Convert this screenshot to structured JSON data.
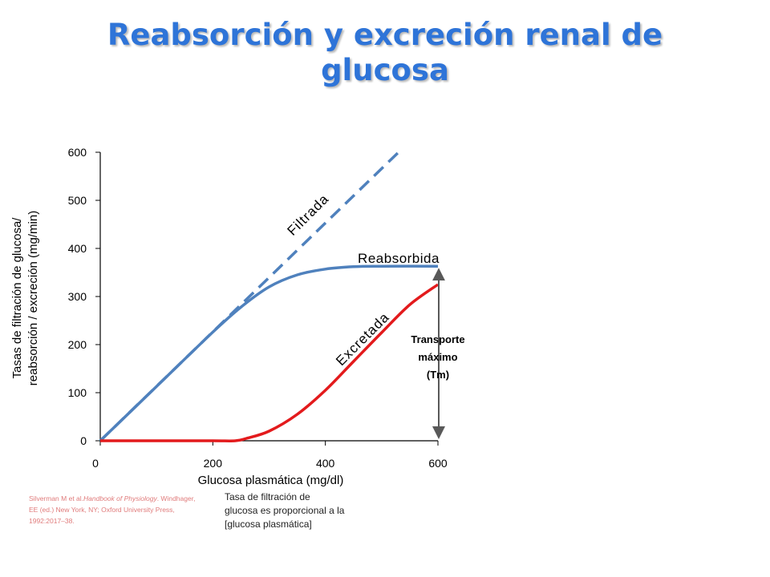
{
  "title": {
    "line1": "Reabsorción y excreción renal de",
    "line2": "glucosa"
  },
  "citation": {
    "before": "Silverman M et al.",
    "book": "Handbook of Physiology",
    "after": ". Windhager, EE (ed.) New York, NY; Oxford University Press, 1992:2017–38."
  },
  "note": "Tasa de filtración de glucosa es proporcional a la [glucosa plasmática]",
  "tm_label": [
    "Transporte",
    "máximo",
    "(Tm)"
  ],
  "colors": {
    "title": "#2e74d8",
    "filtered": "#4f81bd",
    "reabsorbed": "#4f81bd",
    "excreted": "#e31a1c",
    "axis": "#000000",
    "arrow": "#595959"
  },
  "chart_data": {
    "type": "line",
    "title": "",
    "xlabel": "Glucosa plasmática (mg/dl)",
    "ylabel": [
      "Tasas de filtración de glucosa/",
      "reabsorción / excreción  (mg/min)"
    ],
    "xlim": [
      0,
      600
    ],
    "ylim": [
      0,
      600
    ],
    "xticks": [
      0,
      200,
      400,
      600
    ],
    "yticks": [
      0,
      100,
      200,
      300,
      400,
      500,
      600
    ],
    "grid": false,
    "series": [
      {
        "name": "Filtrada",
        "style": "dashed",
        "x": [
          0,
          530
        ],
        "y": [
          0,
          600
        ]
      },
      {
        "name": "Reabsorbida",
        "style": "solid",
        "x": [
          0,
          100,
          200,
          250,
          300,
          350,
          400,
          450,
          500,
          600
        ],
        "y": [
          0,
          113,
          226,
          278,
          320,
          345,
          357,
          362,
          363,
          363
        ]
      },
      {
        "name": "Excretada",
        "style": "solid",
        "x": [
          0,
          100,
          200,
          240,
          260,
          300,
          350,
          400,
          450,
          500,
          550,
          600
        ],
        "y": [
          0,
          0,
          0,
          0,
          5,
          20,
          55,
          105,
          165,
          225,
          283,
          325
        ]
      }
    ]
  }
}
